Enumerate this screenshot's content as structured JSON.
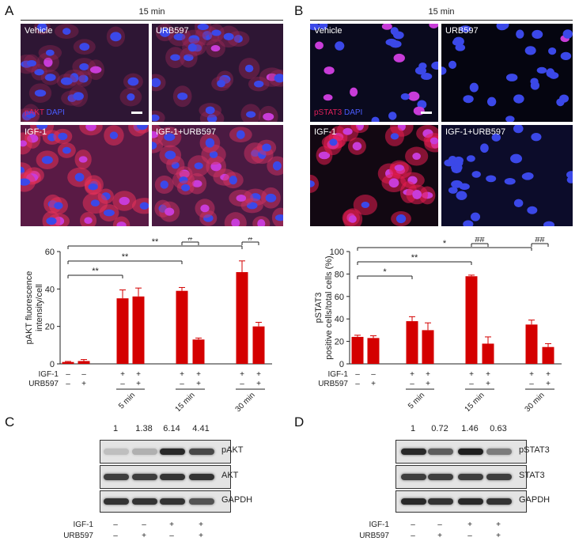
{
  "panels": {
    "A": {
      "letter": "A",
      "time_header": "15 min",
      "images": [
        {
          "label": "Vehicle",
          "stain": ""
        },
        {
          "label": "URB597",
          "stain": ""
        },
        {
          "label": "IGF-1",
          "stain": ""
        },
        {
          "label": "IGF-1+URB597",
          "stain": ""
        }
      ],
      "stain_red": "pAKT",
      "stain_blue": "DAPI"
    },
    "B": {
      "letter": "B",
      "time_header": "15 min",
      "images": [
        {
          "label": "Vehicle"
        },
        {
          "label": "URB597"
        },
        {
          "label": "IGF-1"
        },
        {
          "label": "IGF-1+URB597"
        }
      ],
      "stain_red": "pSTAT3",
      "stain_blue": "DAPI"
    },
    "C": {
      "letter": "C",
      "quant": [
        "1",
        "1.38",
        "6.14",
        "4.41"
      ],
      "bands": [
        "pAKT",
        "AKT",
        "GAPDH"
      ],
      "row_labels": [
        "IGF-1",
        "URB597"
      ],
      "igf_signs": [
        "–",
        "–",
        "+",
        "+"
      ],
      "urb_signs": [
        "–",
        "+",
        "–",
        "+"
      ]
    },
    "D": {
      "letter": "D",
      "quant": [
        "1",
        "0.72",
        "1.46",
        "0.63"
      ],
      "bands": [
        "pSTAT3",
        "STAT3",
        "GAPDH"
      ],
      "row_labels": [
        "IGF-1",
        "URB597"
      ],
      "igf_signs": [
        "–",
        "–",
        "+",
        "+"
      ],
      "urb_signs": [
        "–",
        "+",
        "–",
        "+"
      ]
    }
  },
  "colors": {
    "bar": "#d40000",
    "red_stain": "#e0205a",
    "blue_stain": "#3a4adf",
    "sig": "#222222"
  },
  "chart_data": [
    {
      "type": "bar",
      "ylabel": "pAKT fluorescence intensity/cell",
      "ylim": [
        0,
        60
      ],
      "yticks": [
        "0",
        "20",
        "40",
        "60"
      ],
      "row_labels": [
        "IGF-1",
        "URB597"
      ],
      "igf_signs": [
        "–",
        "–",
        "+",
        "+",
        "+",
        "+",
        "+",
        "+"
      ],
      "urb_signs": [
        "–",
        "+",
        "–",
        "+",
        "–",
        "+",
        "–",
        "+"
      ],
      "time_groups": [
        "5 min",
        "15 min",
        "30 min"
      ],
      "values": [
        1,
        1.5,
        35,
        36,
        39,
        13,
        49,
        20
      ],
      "errors": [
        0.3,
        0.8,
        4.5,
        4.5,
        1.8,
        0.8,
        6,
        2.2
      ],
      "significance": [
        {
          "from": 0,
          "to": 2,
          "label": "**"
        },
        {
          "from": 0,
          "to": 4,
          "label": "**"
        },
        {
          "from": 0,
          "to": 6,
          "label": "**"
        },
        {
          "from": 4,
          "to": 5,
          "label": "#"
        },
        {
          "from": 6,
          "to": 7,
          "label": "#"
        }
      ]
    },
    {
      "type": "bar",
      "ylabel": "pSTAT3 positive cells/total cells (%)",
      "ylim": [
        0,
        100
      ],
      "yticks": [
        "0",
        "20",
        "40",
        "60",
        "80",
        "100"
      ],
      "row_labels": [
        "IGF-1",
        "URB597"
      ],
      "igf_signs": [
        "–",
        "–",
        "+",
        "+",
        "+",
        "+",
        "+",
        "+"
      ],
      "urb_signs": [
        "–",
        "+",
        "–",
        "+",
        "–",
        "+",
        "–",
        "+"
      ],
      "time_groups": [
        "5 min",
        "15 min",
        "30 min"
      ],
      "values": [
        24,
        23,
        38,
        30,
        78,
        18,
        35,
        15
      ],
      "errors": [
        1.5,
        2,
        4,
        6.5,
        1,
        6,
        4,
        3
      ],
      "significance": [
        {
          "from": 0,
          "to": 2,
          "label": "*"
        },
        {
          "from": 0,
          "to": 4,
          "label": "**"
        },
        {
          "from": 0,
          "to": 6,
          "label": "*"
        },
        {
          "from": 4,
          "to": 5,
          "label": "##"
        },
        {
          "from": 6,
          "to": 7,
          "label": "##"
        }
      ]
    }
  ]
}
